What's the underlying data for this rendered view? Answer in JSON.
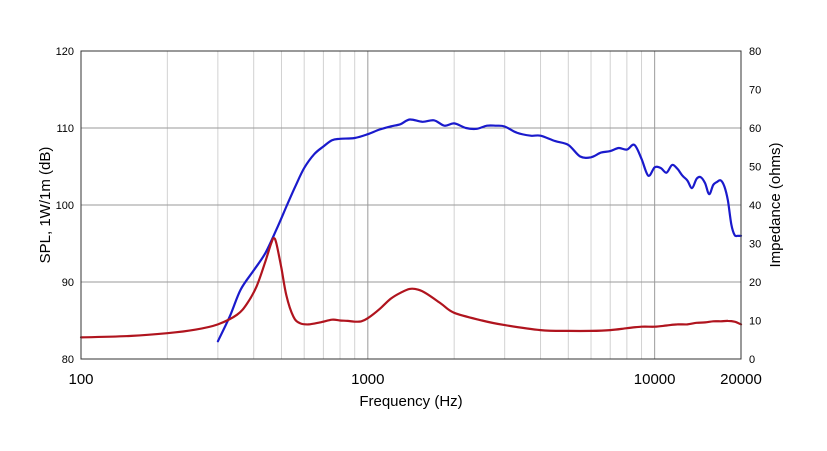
{
  "chart_data": {
    "type": "line",
    "xlabel": "Frequency (Hz)",
    "ylabel": "SPL, 1W/1m (dB)",
    "y2label": "Impedance (ohms)",
    "x_scale": "log",
    "xlim": [
      100,
      20000
    ],
    "ylim": [
      80,
      120
    ],
    "y2lim": [
      0,
      80
    ],
    "grid": true,
    "x_major_ticks": [
      100,
      1000,
      10000,
      20000
    ],
    "x_tick_labels": [
      "100",
      "1000",
      "10000",
      "20000"
    ],
    "y_ticks": [
      80,
      90,
      100,
      110,
      120
    ],
    "y_tick_labels": [
      "80",
      "90",
      "100",
      "110",
      "120"
    ],
    "y2_ticks": [
      0,
      10,
      20,
      30,
      40,
      50,
      60,
      70,
      80
    ],
    "y2_tick_labels": [
      "0",
      "10",
      "20",
      "30",
      "40",
      "50",
      "60",
      "70",
      "80"
    ],
    "series": [
      {
        "color": "#1a1acc",
        "axis": "left",
        "x": [
          300,
          330,
          360,
          400,
          440,
          480,
          520,
          560,
          600,
          650,
          700,
          750,
          800,
          900,
          1000,
          1100,
          1200,
          1300,
          1400,
          1550,
          1700,
          1850,
          2000,
          2200,
          2400,
          2600,
          2800,
          3000,
          3300,
          3700,
          4000,
          4500,
          5000,
          5500,
          6000,
          6500,
          7000,
          7500,
          8000,
          8500,
          9000,
          9500,
          10000,
          10500,
          11000,
          11500,
          12000,
          12500,
          13000,
          13500,
          14000,
          14500,
          15000,
          15500,
          16000,
          16500,
          17000,
          17500,
          18000,
          18500,
          19000,
          19500,
          20000
        ],
        "y": [
          82.3,
          85.5,
          89.0,
          91.5,
          93.8,
          96.8,
          99.8,
          102.5,
          104.8,
          106.6,
          107.6,
          108.4,
          108.6,
          108.7,
          109.2,
          109.8,
          110.2,
          110.5,
          111.1,
          110.8,
          111.0,
          110.3,
          110.6,
          110.0,
          109.9,
          110.3,
          110.3,
          110.2,
          109.4,
          109.0,
          109.0,
          108.3,
          107.8,
          106.3,
          106.2,
          106.8,
          107.0,
          107.4,
          107.2,
          107.8,
          106.0,
          103.8,
          104.9,
          104.8,
          104.2,
          105.2,
          104.7,
          103.8,
          103.2,
          102.2,
          103.4,
          103.6,
          102.8,
          101.4,
          102.6,
          103.0,
          103.2,
          102.4,
          100.6,
          97.5,
          96.1,
          96.0,
          96.0
        ]
      },
      {
        "color": "#b0141e",
        "axis": "right",
        "x": [
          100,
          150,
          200,
          250,
          300,
          350,
          380,
          410,
          440,
          460,
          470,
          480,
          500,
          520,
          550,
          580,
          620,
          680,
          750,
          800,
          850,
          900,
          950,
          1000,
          1100,
          1200,
          1300,
          1400,
          1500,
          1600,
          1800,
          2000,
          2500,
          3000,
          4000,
          5000,
          6000,
          7000,
          8000,
          9000,
          10000,
          11000,
          12000,
          13000,
          14000,
          15000,
          16000,
          17000,
          18000,
          19000,
          20000
        ],
        "y": [
          5.6,
          6.0,
          6.7,
          7.6,
          9.0,
          11.5,
          14.5,
          19.0,
          25.5,
          30.0,
          31.4,
          30.0,
          23.5,
          16.5,
          11.0,
          9.3,
          9.0,
          9.5,
          10.2,
          10.0,
          9.9,
          9.7,
          9.8,
          10.6,
          13.0,
          15.6,
          17.2,
          18.2,
          18.0,
          17.0,
          14.4,
          12.0,
          10.0,
          8.8,
          7.5,
          7.3,
          7.3,
          7.5,
          8.0,
          8.4,
          8.4,
          8.7,
          9.0,
          9.0,
          9.4,
          9.5,
          9.8,
          9.8,
          9.9,
          9.7,
          9.0
        ]
      }
    ]
  }
}
